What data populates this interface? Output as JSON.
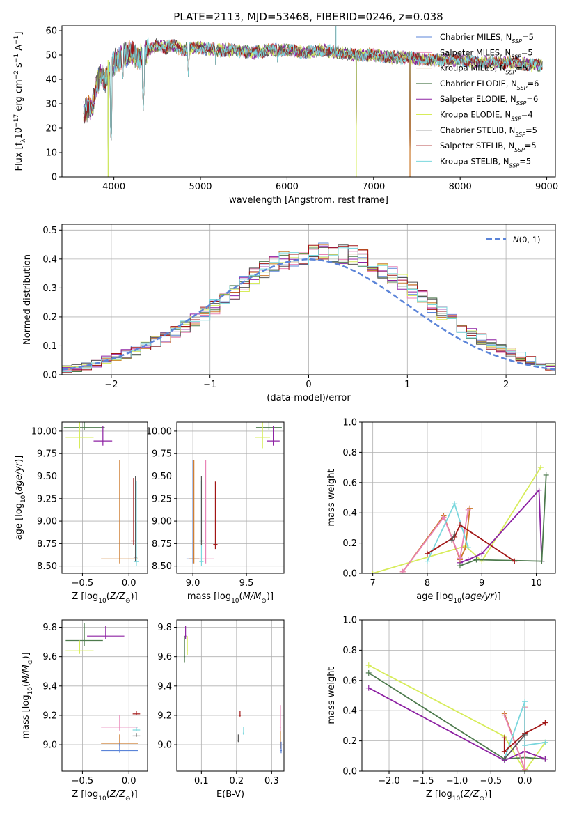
{
  "figure": {
    "title": "PLATE=2113, MJD=53468, FIBERID=0246, z=0.038"
  },
  "colors": {
    "chabrier_miles": "#5b84d8",
    "salpeter_miles": "#e983b6",
    "kroupa_miles": "#cc7a2c",
    "chabrier_elodie": "#4d7a4d",
    "salpeter_elodie": "#8d22a3",
    "kroupa_elodie": "#d7ec5a",
    "chabrier_stelib": "#555555",
    "salpeter_stelib": "#a11515",
    "kroupa_stelib": "#7ad7dd",
    "gaussian": "#5b84d8",
    "grid": "#b0b0b0"
  },
  "chart_data": [
    {
      "id": "spectrum",
      "type": "line",
      "title": "PLATE=2113, MJD=53468, FIBERID=0246, z=0.038",
      "xlabel": "wavelength [Angstrom, rest frame]",
      "ylabel": "Flux [f_λ 10^-17 erg cm^-2 s^-1 A^-1]",
      "xlim": [
        3400,
        9100
      ],
      "ylim": [
        0,
        62
      ],
      "xticks": [
        4000,
        5000,
        6000,
        7000,
        8000,
        9000
      ],
      "yticks": [
        0,
        10,
        20,
        30,
        40,
        50,
        60
      ],
      "grid": false,
      "legend_placement": "top-right",
      "series": [
        {
          "name": "Chabrier MILES, N_SSP=5",
          "color": "#5b84d8"
        },
        {
          "name": "Salpeter MILES, N_SSP=5",
          "color": "#e983b6"
        },
        {
          "name": "Kroupa MILES, N_SSP=5",
          "color": "#cc7a2c"
        },
        {
          "name": "Chabrier ELODIE, N_SSP=6",
          "color": "#4d7a4d"
        },
        {
          "name": "Salpeter ELODIE, N_SSP=6",
          "color": "#8d22a3"
        },
        {
          "name": "Kroupa ELODIE, N_SSP=4",
          "color": "#d7ec5a"
        },
        {
          "name": "Chabrier STELIB, N_SSP=5",
          "color": "#555555"
        },
        {
          "name": "Salpeter STELIB, N_SSP=5",
          "color": "#a11515"
        },
        {
          "name": "Kroupa STELIB, N_SSP=5",
          "color": "#7ad7dd"
        }
      ],
      "continuum": {
        "x": [
          3650,
          3700,
          3750,
          3800,
          3850,
          3900,
          3950,
          4000,
          4100,
          4200,
          4300,
          4400,
          4500,
          4600,
          4700,
          4800,
          4900,
          5000,
          5200,
          5400,
          5600,
          5800,
          6000,
          6200,
          6400,
          6600,
          6800,
          7000,
          7200,
          7400,
          7600,
          7800,
          8000,
          8200,
          8400,
          8600,
          8800,
          9000
        ],
        "y": [
          27,
          28,
          29,
          38,
          42,
          40,
          43,
          47,
          50,
          51,
          49,
          52,
          54,
          53,
          54,
          52,
          53,
          53,
          52,
          52,
          51,
          52,
          52,
          51,
          52,
          51,
          50,
          50,
          49,
          49,
          48,
          48,
          48,
          47,
          47,
          47,
          46,
          46
        ]
      },
      "dips": [
        {
          "x": 3933,
          "y": 0
        },
        {
          "x": 3968,
          "y": 13
        },
        {
          "x": 4102,
          "y": 38
        },
        {
          "x": 4340,
          "y": 27
        },
        {
          "x": 4861,
          "y": 40
        },
        {
          "x": 5175,
          "y": 46
        },
        {
          "x": 5890,
          "y": 47
        },
        {
          "x": 6800,
          "y": 0
        },
        {
          "x": 7420,
          "y": 0
        }
      ],
      "spikes": [
        {
          "x": 6563,
          "y": 70
        }
      ]
    },
    {
      "id": "residuals",
      "type": "histogram",
      "xlabel": "(data-model)/error",
      "ylabel": "Normed distribution",
      "xlim": [
        -2.5,
        2.5
      ],
      "ylim": [
        0,
        0.52
      ],
      "xticks": [
        -2,
        -1,
        0,
        1,
        2
      ],
      "yticks": [
        0.0,
        0.1,
        0.2,
        0.3,
        0.4,
        0.5
      ],
      "grid": true,
      "legend_placement": "top-right",
      "legend": "N(0,1)",
      "bins": {
        "start": -2.5,
        "width": 0.1,
        "count": 50
      },
      "mean_profile": [
        0.02,
        0.023,
        0.03,
        0.04,
        0.05,
        0.06,
        0.072,
        0.085,
        0.1,
        0.115,
        0.13,
        0.148,
        0.168,
        0.19,
        0.212,
        0.236,
        0.262,
        0.288,
        0.314,
        0.338,
        0.36,
        0.378,
        0.395,
        0.405,
        0.412,
        0.415,
        0.42,
        0.42,
        0.415,
        0.41,
        0.4,
        0.385,
        0.365,
        0.342,
        0.318,
        0.292,
        0.266,
        0.24,
        0.214,
        0.19,
        0.166,
        0.144,
        0.124,
        0.106,
        0.09,
        0.076,
        0.063,
        0.05,
        0.04,
        0.03
      ]
    },
    {
      "id": "age-vs-z",
      "type": "errorbar",
      "xlabel": "Z [log10(Z/Z_⊙)]",
      "ylabel": "age [log10(age/yr)]",
      "xlim": [
        -0.72,
        0.2
      ],
      "ylim": [
        8.42,
        10.1
      ],
      "xticks": [
        -0.5,
        0.0
      ],
      "xtick_labels": [
        "−0.5",
        "0.0"
      ],
      "yticks": [
        8.5,
        8.75,
        9.0,
        9.25,
        9.5,
        9.75,
        10.0
      ],
      "yticks_labels": [
        "8.50",
        "8.75",
        "9.00",
        "9.25",
        "9.50",
        "9.75",
        "10.00"
      ],
      "grid": true,
      "points": [
        {
          "x": -0.48,
          "y": 10.04,
          "xerr": 0.22,
          "yerr": 0.1,
          "color": "#4d7a4d"
        },
        {
          "x": -0.53,
          "y": 9.93,
          "xerr": 0.15,
          "yerr": 0.4,
          "color": "#d7ec5a"
        },
        {
          "x": -0.28,
          "y": 9.89,
          "xerr": 0.1,
          "yerr": 0.17,
          "color": "#8d22a3"
        },
        {
          "x": -0.1,
          "y": 8.58,
          "xerr": 0.2,
          "yerr": 1.1,
          "color": "#cc7a2c"
        },
        {
          "x": 0.05,
          "y": 8.78,
          "xerr": 0.03,
          "yerr": 0.7,
          "color": "#a11515"
        },
        {
          "x": 0.08,
          "y": 8.55,
          "xerr": 0.03,
          "yerr": 0.9,
          "color": "#7ad7dd"
        },
        {
          "x": 0.07,
          "y": 8.6,
          "xerr": 0.02,
          "yerr": 0.9,
          "color": "#555555"
        }
      ]
    },
    {
      "id": "age-vs-mass",
      "type": "errorbar",
      "xlabel": "mass [log10(M/M_⊙)]",
      "ylabel": "",
      "xlim": [
        8.85,
        9.85
      ],
      "ylim": [
        8.42,
        10.1
      ],
      "xticks": [
        9.0,
        9.5
      ],
      "xtick_labels": [
        "9.0",
        "9.5"
      ],
      "yticks": [
        8.5,
        8.75,
        9.0,
        9.25,
        9.5,
        9.75,
        10.0
      ],
      "yticks_labels": [
        "8.50",
        "8.75",
        "9.00",
        "9.25",
        "9.50",
        "9.75",
        "10.00"
      ],
      "grid": true,
      "points": [
        {
          "x": 9.71,
          "y": 10.04,
          "xerr": 0.12,
          "yerr": 0.1,
          "color": "#4d7a4d"
        },
        {
          "x": 9.65,
          "y": 9.93,
          "xerr": 0.07,
          "yerr": 0.4,
          "color": "#d7ec5a"
        },
        {
          "x": 9.75,
          "y": 9.89,
          "xerr": 0.06,
          "yerr": 0.17,
          "color": "#8d22a3"
        },
        {
          "x": 9.0,
          "y": 8.58,
          "xerr": 0.06,
          "yerr": 1.1,
          "color": "#5b84d8"
        },
        {
          "x": 9.12,
          "y": 8.58,
          "xerr": 0.08,
          "yerr": 1.1,
          "color": "#e983b6"
        },
        {
          "x": 9.01,
          "y": 8.58,
          "xerr": 0.05,
          "yerr": 1.1,
          "color": "#cc7a2c"
        },
        {
          "x": 9.21,
          "y": 8.74,
          "xerr": 0.02,
          "yerr": 0.7,
          "color": "#a11515"
        },
        {
          "x": 9.08,
          "y": 8.55,
          "xerr": 0.02,
          "yerr": 0.9,
          "color": "#7ad7dd"
        },
        {
          "x": 9.08,
          "y": 8.78,
          "xerr": 0.02,
          "yerr": 0.72,
          "color": "#555555"
        }
      ]
    },
    {
      "id": "massweight-vs-age",
      "type": "line",
      "xlabel": "age [log10(age/yr)]",
      "ylabel": "mass weight",
      "xlim": [
        6.8,
        10.35
      ],
      "ylim": [
        0,
        1.0
      ],
      "xticks": [
        7,
        8,
        9,
        10
      ],
      "yticks": [
        0.0,
        0.2,
        0.4,
        0.6,
        0.8,
        1.0
      ],
      "ytick_labels": [
        "0.0",
        "0.2",
        "0.4",
        "0.6",
        "0.8",
        "1.0"
      ],
      "grid": true,
      "series": [
        {
          "color": "#d7ec5a",
          "x": [
            7.0,
            8.7,
            9.0,
            10.08
          ],
          "y": [
            0.0,
            0.18,
            0.08,
            0.7
          ]
        },
        {
          "color": "#8d22a3",
          "x": [
            8.6,
            8.75,
            9.0,
            10.05,
            10.1
          ],
          "y": [
            0.07,
            0.09,
            0.13,
            0.55,
            0.08
          ]
        },
        {
          "color": "#4d7a4d",
          "x": [
            8.6,
            8.9,
            10.1,
            10.18
          ],
          "y": [
            0.05,
            0.09,
            0.08,
            0.65
          ]
        },
        {
          "color": "#cc7a2c",
          "x": [
            7.55,
            8.3,
            8.6,
            8.7,
            8.78
          ],
          "y": [
            0.01,
            0.38,
            0.09,
            0.17,
            0.43
          ]
        },
        {
          "color": "#e983b6",
          "x": [
            7.55,
            8.3,
            8.6,
            8.75
          ],
          "y": [
            0.01,
            0.37,
            0.1,
            0.42
          ]
        },
        {
          "color": "#7ad7dd",
          "x": [
            8.0,
            8.5,
            8.75
          ],
          "y": [
            0.08,
            0.46,
            0.17
          ]
        },
        {
          "color": "#a11515",
          "x": [
            8.0,
            8.5,
            8.6,
            9.6
          ],
          "y": [
            0.13,
            0.24,
            0.32,
            0.08
          ]
        },
        {
          "color": "#555555",
          "x": [
            8.45,
            8.5
          ],
          "y": [
            0.22,
            0.26
          ]
        }
      ]
    },
    {
      "id": "mass-vs-z",
      "type": "errorbar",
      "xlabel": "Z [log10(Z/Z_⊙)]",
      "ylabel": "mass [log10(M/M_⊙)]",
      "xlim": [
        -0.72,
        0.2
      ],
      "ylim": [
        8.82,
        9.85
      ],
      "xticks": [
        -0.5,
        0.0
      ],
      "xtick_labels": [
        "−0.5",
        "0.0"
      ],
      "yticks": [
        9.0,
        9.2,
        9.4,
        9.6,
        9.8
      ],
      "grid": true,
      "points": [
        {
          "x": -0.48,
          "y": 9.71,
          "xerr": 0.2,
          "yerr": 0.12,
          "color": "#4d7a4d"
        },
        {
          "x": -0.53,
          "y": 9.64,
          "xerr": 0.15,
          "yerr": 0.07,
          "color": "#d7ec5a"
        },
        {
          "x": -0.25,
          "y": 9.74,
          "xerr": 0.2,
          "yerr": 0.07,
          "color": "#8d22a3"
        },
        {
          "x": -0.1,
          "y": 9.12,
          "xerr": 0.2,
          "yerr": 0.08,
          "color": "#e983b6"
        },
        {
          "x": -0.1,
          "y": 9.01,
          "xerr": 0.2,
          "yerr": 0.06,
          "color": "#cc7a2c"
        },
        {
          "x": -0.1,
          "y": 8.96,
          "xerr": 0.2,
          "yerr": 0.05,
          "color": "#5b84d8"
        },
        {
          "x": 0.08,
          "y": 9.21,
          "xerr": 0.04,
          "yerr": 0.02,
          "color": "#a11515"
        },
        {
          "x": 0.08,
          "y": 9.1,
          "xerr": 0.04,
          "yerr": 0.02,
          "color": "#7ad7dd"
        },
        {
          "x": 0.08,
          "y": 9.06,
          "xerr": 0.04,
          "yerr": 0.02,
          "color": "#555555"
        }
      ]
    },
    {
      "id": "mass-vs-ebv",
      "type": "errorbar",
      "xlabel": "E(B-V)",
      "ylabel": "",
      "xlim": [
        0.03,
        0.335
      ],
      "ylim": [
        8.82,
        9.85
      ],
      "xticks": [
        0.1,
        0.2,
        0.3
      ],
      "xtick_labels": [
        "0.1",
        "0.2",
        "0.3"
      ],
      "yticks": [
        9.0,
        9.2,
        9.4,
        9.6,
        9.8
      ],
      "grid": true,
      "points": [
        {
          "x": 0.055,
          "y": 9.74,
          "xerr": 0.002,
          "yerr": 0.07,
          "color": "#8d22a3"
        },
        {
          "x": 0.06,
          "y": 9.64,
          "xerr": 0.002,
          "yerr": 0.1,
          "color": "#d7ec5a"
        },
        {
          "x": 0.052,
          "y": 9.6,
          "xerr": 0.002,
          "yerr": 0.14,
          "color": "#4d7a4d"
        },
        {
          "x": 0.21,
          "y": 9.2,
          "xerr": 0.002,
          "yerr": 0.03,
          "color": "#a11515"
        },
        {
          "x": 0.22,
          "y": 9.08,
          "xerr": 0.002,
          "yerr": 0.04,
          "color": "#7ad7dd"
        },
        {
          "x": 0.205,
          "y": 9.03,
          "xerr": 0.002,
          "yerr": 0.04,
          "color": "#555555"
        },
        {
          "x": 0.325,
          "y": 9.12,
          "xerr": 0.002,
          "yerr": 0.15,
          "color": "#e983b6"
        },
        {
          "x": 0.325,
          "y": 9.0,
          "xerr": 0.002,
          "yerr": 0.09,
          "color": "#cc7a2c"
        },
        {
          "x": 0.327,
          "y": 8.96,
          "xerr": 0.002,
          "yerr": 0.06,
          "color": "#5b84d8"
        }
      ]
    },
    {
      "id": "massweight-vs-z",
      "type": "line",
      "xlabel": "Z [log10(Z/Z_⊙)]",
      "ylabel": "mass weight",
      "xlim": [
        -2.4,
        0.45
      ],
      "ylim": [
        0,
        1.0
      ],
      "xticks": [
        -2.0,
        -1.5,
        -1.0,
        -0.5,
        0.0
      ],
      "xtick_labels": [
        "−2.0",
        "−1.5",
        "−1.0",
        "−0.5",
        "0.0"
      ],
      "yticks": [
        0.0,
        0.2,
        0.4,
        0.6,
        0.8,
        1.0
      ],
      "ytick_labels": [
        "0.0",
        "0.2",
        "0.4",
        "0.6",
        "0.8",
        "1.0"
      ],
      "grid": true,
      "series": [
        {
          "color": "#d7ec5a",
          "x": [
            -2.3,
            -0.3,
            0.0,
            0.3
          ],
          "y": [
            0.7,
            0.23,
            0.0,
            0.19
          ]
        },
        {
          "color": "#4d7a4d",
          "x": [
            -2.3,
            -0.3,
            0.0,
            0.3
          ],
          "y": [
            0.65,
            0.08,
            0.09,
            0.08
          ]
        },
        {
          "color": "#8d22a3",
          "x": [
            -2.3,
            -0.3,
            0.0,
            0.3
          ],
          "y": [
            0.55,
            0.07,
            0.13,
            0.08
          ]
        },
        {
          "color": "#cc7a2c",
          "x": [
            -0.3,
            0.0,
            0.0
          ],
          "y": [
            0.38,
            0.01,
            0.43
          ]
        },
        {
          "color": "#e983b6",
          "x": [
            -0.3,
            0.0,
            0.0
          ],
          "y": [
            0.37,
            0.01,
            0.42
          ]
        },
        {
          "color": "#7ad7dd",
          "x": [
            -0.3,
            0.0,
            0.0,
            0.3
          ],
          "y": [
            0.08,
            0.46,
            0.17,
            0.19
          ]
        },
        {
          "color": "#a11515",
          "x": [
            -0.3,
            -0.3,
            0.0,
            0.3
          ],
          "y": [
            0.22,
            0.13,
            0.25,
            0.32
          ]
        },
        {
          "color": "#555555",
          "x": [
            -0.3,
            0.0
          ],
          "y": [
            0.08,
            0.24
          ]
        }
      ]
    }
  ]
}
